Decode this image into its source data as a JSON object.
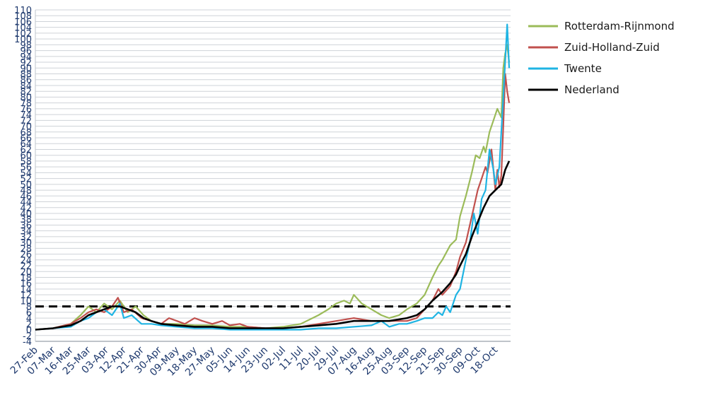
{
  "chart_data": {
    "type": "line",
    "title": "",
    "xlabel": "",
    "ylabel": "",
    "ylim": [
      -4,
      110
    ],
    "ytick_labels": [
      "110",
      "108",
      "106",
      "104",
      "102",
      "100",
      "98",
      "96",
      "94",
      "92",
      "90",
      "88",
      "86",
      "84",
      "82",
      "80",
      "78",
      "76",
      "74",
      "72",
      "70",
      "68",
      "66",
      "64",
      "62",
      "60",
      "58",
      "56",
      "54",
      "52",
      "50",
      "48",
      "46",
      "44",
      "42",
      "40",
      "38",
      "36",
      "34",
      "32",
      "30",
      "28",
      "26",
      "24",
      "22",
      "20",
      "18",
      "16",
      "14",
      "12",
      "10",
      "8",
      "6",
      "4",
      "2",
      "0",
      "-2",
      "-4"
    ],
    "x_tick_labels": [
      "27-Feb",
      "07-Mar",
      "16-Mar",
      "25-Mar",
      "03-Apr",
      "12-Apr",
      "21-Apr",
      "30-Apr",
      "09-May",
      "18-May",
      "27-May",
      "05-Jun",
      "14-Jun",
      "23-Jun",
      "02-Jul",
      "11-Jul",
      "20-Jul",
      "29-Jul",
      "07-Aug",
      "16-Aug",
      "25-Aug",
      "03-Sep",
      "12-Sep",
      "21-Sep",
      "30-Sep",
      "09-Oct",
      "18-Oct"
    ],
    "x_start": "2020-02-27",
    "x_end": "2020-10-25",
    "grid": true,
    "legend_position": "right",
    "reference_line": {
      "value": 8,
      "style": "dashed",
      "color": "#000000"
    },
    "series": [
      {
        "name": "Rotterdam-Rijnmond",
        "color": "#9bbb59",
        "points": [
          [
            "2020-02-27",
            0
          ],
          [
            "2020-03-07",
            0.5
          ],
          [
            "2020-03-16",
            2
          ],
          [
            "2020-03-21",
            5
          ],
          [
            "2020-03-25",
            8
          ],
          [
            "2020-03-29",
            6
          ],
          [
            "2020-04-02",
            9
          ],
          [
            "2020-04-06",
            7
          ],
          [
            "2020-04-10",
            10
          ],
          [
            "2020-04-14",
            6
          ],
          [
            "2020-04-18",
            8
          ],
          [
            "2020-04-22",
            5
          ],
          [
            "2020-04-26",
            3
          ],
          [
            "2020-05-01",
            2
          ],
          [
            "2020-05-09",
            2
          ],
          [
            "2020-05-18",
            1.5
          ],
          [
            "2020-05-27",
            1.5
          ],
          [
            "2020-06-05",
            1
          ],
          [
            "2020-06-14",
            1
          ],
          [
            "2020-06-23",
            0.5
          ],
          [
            "2020-07-02",
            1
          ],
          [
            "2020-07-11",
            2
          ],
          [
            "2020-07-20",
            5
          ],
          [
            "2020-07-25",
            7
          ],
          [
            "2020-07-29",
            9
          ],
          [
            "2020-08-02",
            10
          ],
          [
            "2020-08-05",
            9
          ],
          [
            "2020-08-07",
            12
          ],
          [
            "2020-08-11",
            9
          ],
          [
            "2020-08-16",
            7
          ],
          [
            "2020-08-21",
            5
          ],
          [
            "2020-08-25",
            4
          ],
          [
            "2020-08-30",
            5
          ],
          [
            "2020-09-03",
            7
          ],
          [
            "2020-09-08",
            9
          ],
          [
            "2020-09-12",
            12
          ],
          [
            "2020-09-16",
            18
          ],
          [
            "2020-09-19",
            22
          ],
          [
            "2020-09-21",
            24
          ],
          [
            "2020-09-25",
            29
          ],
          [
            "2020-09-28",
            31
          ],
          [
            "2020-09-30",
            39
          ],
          [
            "2020-10-03",
            46
          ],
          [
            "2020-10-06",
            54
          ],
          [
            "2020-10-08",
            60
          ],
          [
            "2020-10-10",
            59
          ],
          [
            "2020-10-12",
            63
          ],
          [
            "2020-10-13",
            61
          ],
          [
            "2020-10-15",
            68
          ],
          [
            "2020-10-17",
            72
          ],
          [
            "2020-10-19",
            76
          ],
          [
            "2020-10-21",
            73
          ],
          [
            "2020-10-22",
            90
          ],
          [
            "2020-10-23",
            95
          ],
          [
            "2020-10-24",
            98
          ],
          [
            "2020-10-25",
            92
          ]
        ]
      },
      {
        "name": "Zuid-Holland-Zuid",
        "color": "#c0504d",
        "points": [
          [
            "2020-02-27",
            0
          ],
          [
            "2020-03-07",
            0.5
          ],
          [
            "2020-03-16",
            2
          ],
          [
            "2020-03-21",
            4
          ],
          [
            "2020-03-25",
            6
          ],
          [
            "2020-03-29",
            7
          ],
          [
            "2020-04-02",
            6
          ],
          [
            "2020-04-06",
            8
          ],
          [
            "2020-04-09",
            11
          ],
          [
            "2020-04-12",
            6
          ],
          [
            "2020-04-16",
            7
          ],
          [
            "2020-04-21",
            4
          ],
          [
            "2020-04-26",
            3
          ],
          [
            "2020-05-01",
            2
          ],
          [
            "2020-05-05",
            4
          ],
          [
            "2020-05-09",
            3
          ],
          [
            "2020-05-13",
            2
          ],
          [
            "2020-05-18",
            4
          ],
          [
            "2020-05-22",
            3
          ],
          [
            "2020-05-27",
            2
          ],
          [
            "2020-06-01",
            3
          ],
          [
            "2020-06-05",
            1.5
          ],
          [
            "2020-06-10",
            2
          ],
          [
            "2020-06-14",
            1
          ],
          [
            "2020-06-23",
            0.5
          ],
          [
            "2020-07-02",
            0.5
          ],
          [
            "2020-07-11",
            1
          ],
          [
            "2020-07-20",
            2
          ],
          [
            "2020-07-29",
            3
          ],
          [
            "2020-08-07",
            4
          ],
          [
            "2020-08-16",
            3
          ],
          [
            "2020-08-25",
            3
          ],
          [
            "2020-09-03",
            3
          ],
          [
            "2020-09-08",
            4
          ],
          [
            "2020-09-12",
            7
          ],
          [
            "2020-09-16",
            10
          ],
          [
            "2020-09-19",
            14
          ],
          [
            "2020-09-21",
            12
          ],
          [
            "2020-09-25",
            15
          ],
          [
            "2020-09-28",
            20
          ],
          [
            "2020-09-30",
            25
          ],
          [
            "2020-10-03",
            30
          ],
          [
            "2020-10-05",
            36
          ],
          [
            "2020-10-07",
            42
          ],
          [
            "2020-10-09",
            48
          ],
          [
            "2020-10-11",
            52
          ],
          [
            "2020-10-13",
            56
          ],
          [
            "2020-10-14",
            54
          ],
          [
            "2020-10-16",
            62
          ],
          [
            "2020-10-18",
            48
          ],
          [
            "2020-10-19",
            55
          ],
          [
            "2020-10-20",
            49
          ],
          [
            "2020-10-21",
            53
          ],
          [
            "2020-10-22",
            70
          ],
          [
            "2020-10-23",
            88
          ],
          [
            "2020-10-24",
            82
          ],
          [
            "2020-10-25",
            78
          ]
        ]
      },
      {
        "name": "Twente",
        "color": "#1fb4e3",
        "points": [
          [
            "2020-02-27",
            0
          ],
          [
            "2020-03-07",
            0.5
          ],
          [
            "2020-03-16",
            1
          ],
          [
            "2020-03-21",
            3
          ],
          [
            "2020-03-25",
            4
          ],
          [
            "2020-03-29",
            6
          ],
          [
            "2020-04-02",
            7
          ],
          [
            "2020-04-06",
            5
          ],
          [
            "2020-04-10",
            9
          ],
          [
            "2020-04-12",
            4
          ],
          [
            "2020-04-16",
            5
          ],
          [
            "2020-04-21",
            2
          ],
          [
            "2020-04-26",
            2
          ],
          [
            "2020-05-01",
            1.5
          ],
          [
            "2020-05-09",
            1
          ],
          [
            "2020-05-18",
            0.5
          ],
          [
            "2020-05-27",
            0.5
          ],
          [
            "2020-06-05",
            0
          ],
          [
            "2020-06-14",
            0
          ],
          [
            "2020-06-23",
            0
          ],
          [
            "2020-07-02",
            0
          ],
          [
            "2020-07-11",
            0
          ],
          [
            "2020-07-20",
            0.5
          ],
          [
            "2020-07-29",
            0.5
          ],
          [
            "2020-08-07",
            1
          ],
          [
            "2020-08-16",
            1.5
          ],
          [
            "2020-08-21",
            3
          ],
          [
            "2020-08-25",
            1
          ],
          [
            "2020-08-30",
            2
          ],
          [
            "2020-09-03",
            2
          ],
          [
            "2020-09-08",
            3
          ],
          [
            "2020-09-12",
            4
          ],
          [
            "2020-09-16",
            4
          ],
          [
            "2020-09-19",
            6
          ],
          [
            "2020-09-21",
            5
          ],
          [
            "2020-09-23",
            8
          ],
          [
            "2020-09-25",
            6
          ],
          [
            "2020-09-28",
            12
          ],
          [
            "2020-09-30",
            14
          ],
          [
            "2020-10-03",
            24
          ],
          [
            "2020-10-05",
            30
          ],
          [
            "2020-10-07",
            40
          ],
          [
            "2020-10-09",
            33
          ],
          [
            "2020-10-11",
            45
          ],
          [
            "2020-10-13",
            48
          ],
          [
            "2020-10-15",
            62
          ],
          [
            "2020-10-17",
            55
          ],
          [
            "2020-10-18",
            50
          ],
          [
            "2020-10-20",
            56
          ],
          [
            "2020-10-22",
            80
          ],
          [
            "2020-10-24",
            105
          ],
          [
            "2020-10-25",
            90
          ]
        ]
      },
      {
        "name": "Nederland",
        "color": "#000000",
        "points": [
          [
            "2020-02-27",
            0
          ],
          [
            "2020-03-07",
            0.5
          ],
          [
            "2020-03-16",
            1.5
          ],
          [
            "2020-03-21",
            3
          ],
          [
            "2020-03-25",
            5
          ],
          [
            "2020-03-29",
            6
          ],
          [
            "2020-04-02",
            7
          ],
          [
            "2020-04-06",
            8
          ],
          [
            "2020-04-10",
            8
          ],
          [
            "2020-04-14",
            7
          ],
          [
            "2020-04-18",
            6
          ],
          [
            "2020-04-22",
            4
          ],
          [
            "2020-04-26",
            3
          ],
          [
            "2020-05-01",
            2
          ],
          [
            "2020-05-09",
            1.5
          ],
          [
            "2020-05-18",
            1
          ],
          [
            "2020-05-27",
            1
          ],
          [
            "2020-06-05",
            0.5
          ],
          [
            "2020-06-14",
            0.5
          ],
          [
            "2020-06-23",
            0.5
          ],
          [
            "2020-07-02",
            0.5
          ],
          [
            "2020-07-11",
            1
          ],
          [
            "2020-07-20",
            1.5
          ],
          [
            "2020-07-29",
            2
          ],
          [
            "2020-08-07",
            3
          ],
          [
            "2020-08-16",
            3
          ],
          [
            "2020-08-25",
            3
          ],
          [
            "2020-09-03",
            4
          ],
          [
            "2020-09-08",
            5
          ],
          [
            "2020-09-12",
            7
          ],
          [
            "2020-09-16",
            10
          ],
          [
            "2020-09-21",
            13
          ],
          [
            "2020-09-25",
            16
          ],
          [
            "2020-09-28",
            19
          ],
          [
            "2020-09-30",
            22
          ],
          [
            "2020-10-03",
            26
          ],
          [
            "2020-10-06",
            32
          ],
          [
            "2020-10-09",
            37
          ],
          [
            "2020-10-12",
            42
          ],
          [
            "2020-10-15",
            46
          ],
          [
            "2020-10-18",
            48
          ],
          [
            "2020-10-21",
            50
          ],
          [
            "2020-10-23",
            55
          ],
          [
            "2020-10-25",
            58
          ]
        ]
      }
    ]
  }
}
